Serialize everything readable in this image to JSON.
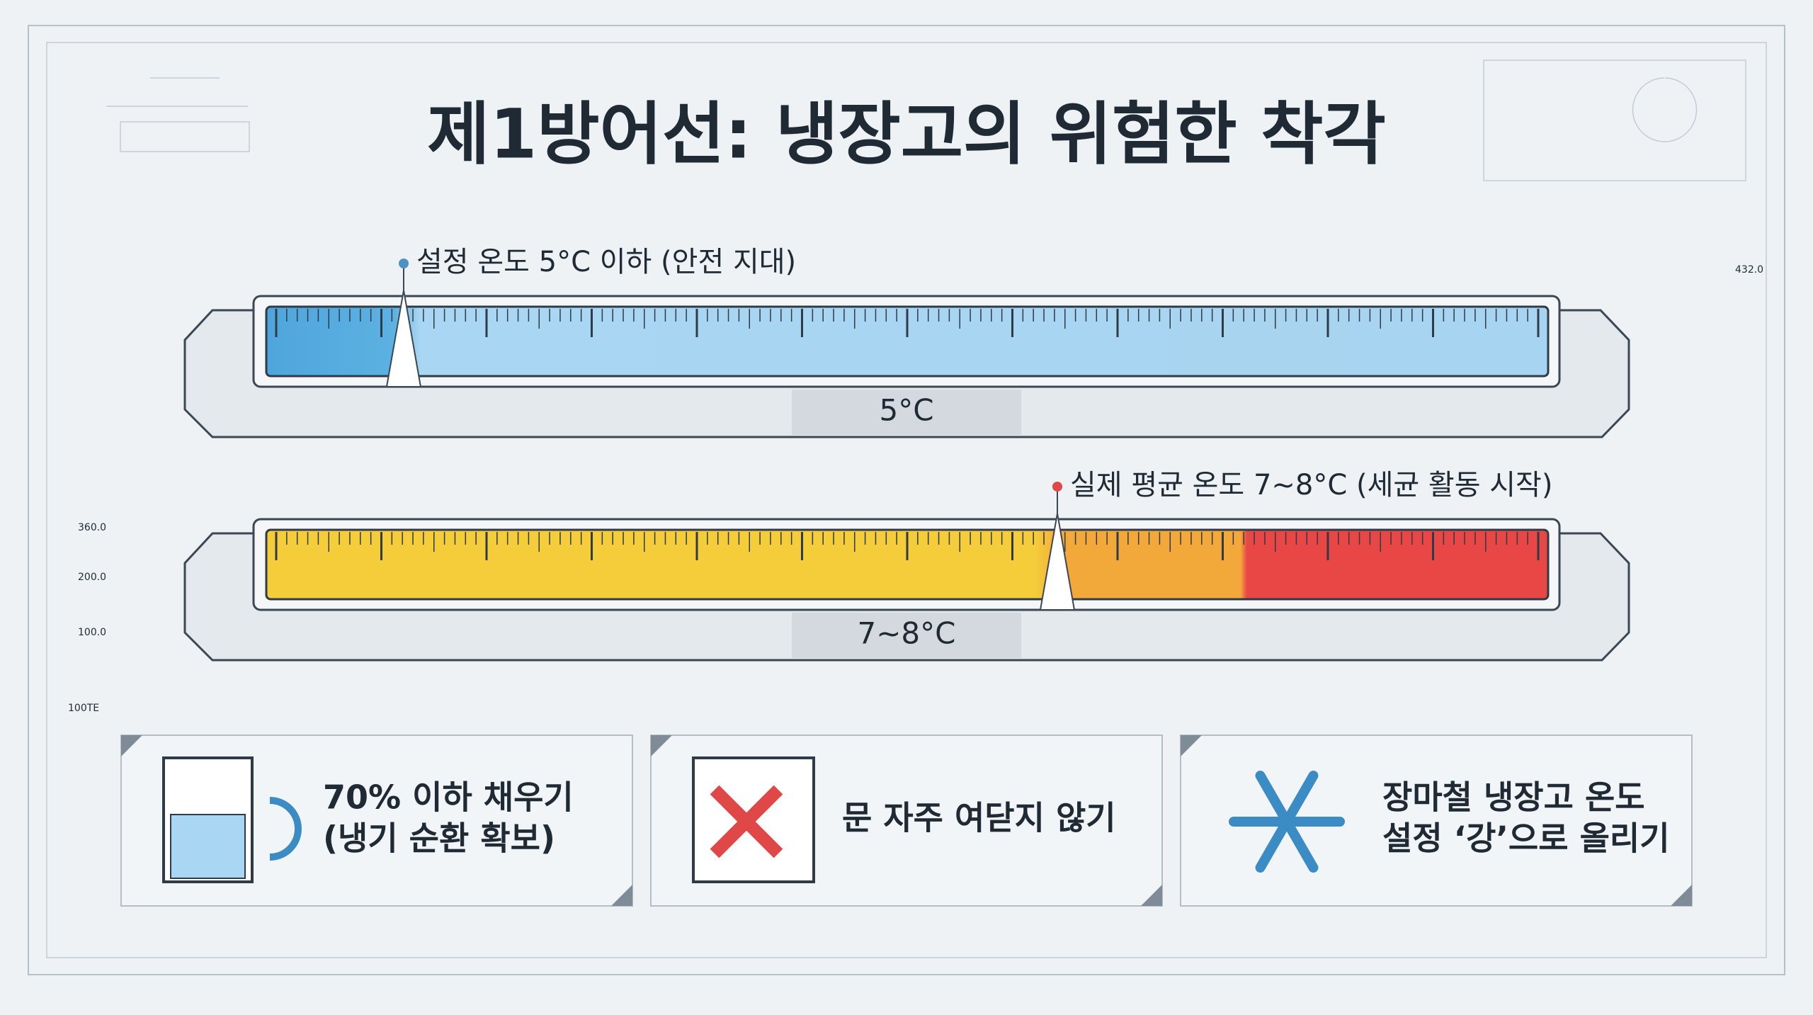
{
  "header": {
    "title": "제1방어선: 냉장고의 위험한 착각"
  },
  "gauges": [
    {
      "label": "설정 온도 5°C 이하 (안전 지대)",
      "value_text": "5°C"
    },
    {
      "label": "실제 평균 온도 7~8°C (세균 활동 시작)",
      "value_text": "7~8°C"
    }
  ],
  "tips": [
    {
      "lines": [
        "70% 이하 채우기",
        "(냉기 순환 확보)"
      ]
    },
    {
      "lines": [
        "문 자주 여닫지 않기"
      ]
    },
    {
      "lines": [
        "장마철 냉장고 온도",
        "설정 ‘강’으로 올리기"
      ]
    }
  ],
  "deco_labels": [
    "360.0",
    "200.0",
    "100.0",
    "432.0",
    "100TE"
  ]
}
